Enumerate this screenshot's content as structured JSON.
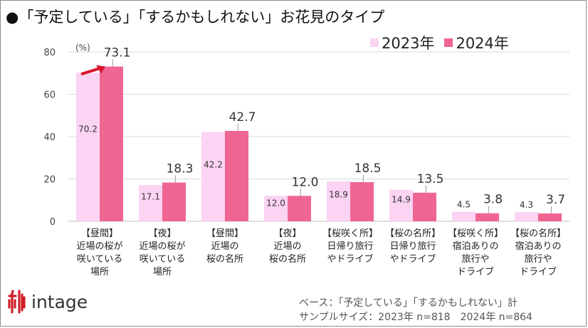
{
  "title": "●「予定している」「するかもしれない」お花見のタイプ",
  "colors": {
    "y2023": "#fbd3f3",
    "y2024": "#f06692",
    "arrow": "#d9162d",
    "logo": "#d01f27"
  },
  "legend": [
    "2023年",
    "2024年"
  ],
  "logo_text": "intage",
  "notes": {
    "base": "ベース：「予定している」「するかもしれない」計",
    "sample": "サンプルサイズ：2023年 n=818　2024年 n=864"
  },
  "chart_data": {
    "type": "bar",
    "title": "●「予定している」「するかもしれない」お花見のタイプ",
    "ylabel": "(%)",
    "ylim": [
      0,
      80
    ],
    "yticks": [
      0,
      20,
      40,
      60,
      80
    ],
    "grid": true,
    "legend_position": "top-right",
    "categories": [
      [
        "【昼間】",
        "近場の桜が",
        "咲いている",
        "場所"
      ],
      [
        "【夜】",
        "近場の桜が",
        "咲いている",
        "場所"
      ],
      [
        "【昼間】",
        "近場の",
        "桜の名所"
      ],
      [
        "【夜】",
        "近場の",
        "桜の名所"
      ],
      [
        "【桜咲く所】",
        "日帰り旅行",
        "やドライブ"
      ],
      [
        "【桜の名所】",
        "日帰り旅行",
        "やドライブ"
      ],
      [
        "【桜咲く所】",
        "宿泊ありの",
        "旅行や",
        "ドライブ"
      ],
      [
        "【桜の名所】",
        "宿泊ありの",
        "旅行や",
        "ドライブ"
      ]
    ],
    "series": [
      {
        "name": "2023年",
        "values": [
          70.2,
          17.1,
          42.2,
          12.0,
          18.9,
          14.9,
          4.5,
          4.3
        ],
        "labels": [
          "70.2",
          "17.1",
          "42.2",
          "12.0",
          "18.9",
          "14.9",
          "4.5",
          "4.3"
        ]
      },
      {
        "name": "2024年",
        "values": [
          73.1,
          18.3,
          42.7,
          12.0,
          18.5,
          13.5,
          3.8,
          3.7
        ],
        "labels": [
          "73.1",
          "18.3",
          "42.7",
          "12.0",
          "18.5",
          "13.5",
          "3.8",
          "3.7"
        ]
      }
    ]
  }
}
